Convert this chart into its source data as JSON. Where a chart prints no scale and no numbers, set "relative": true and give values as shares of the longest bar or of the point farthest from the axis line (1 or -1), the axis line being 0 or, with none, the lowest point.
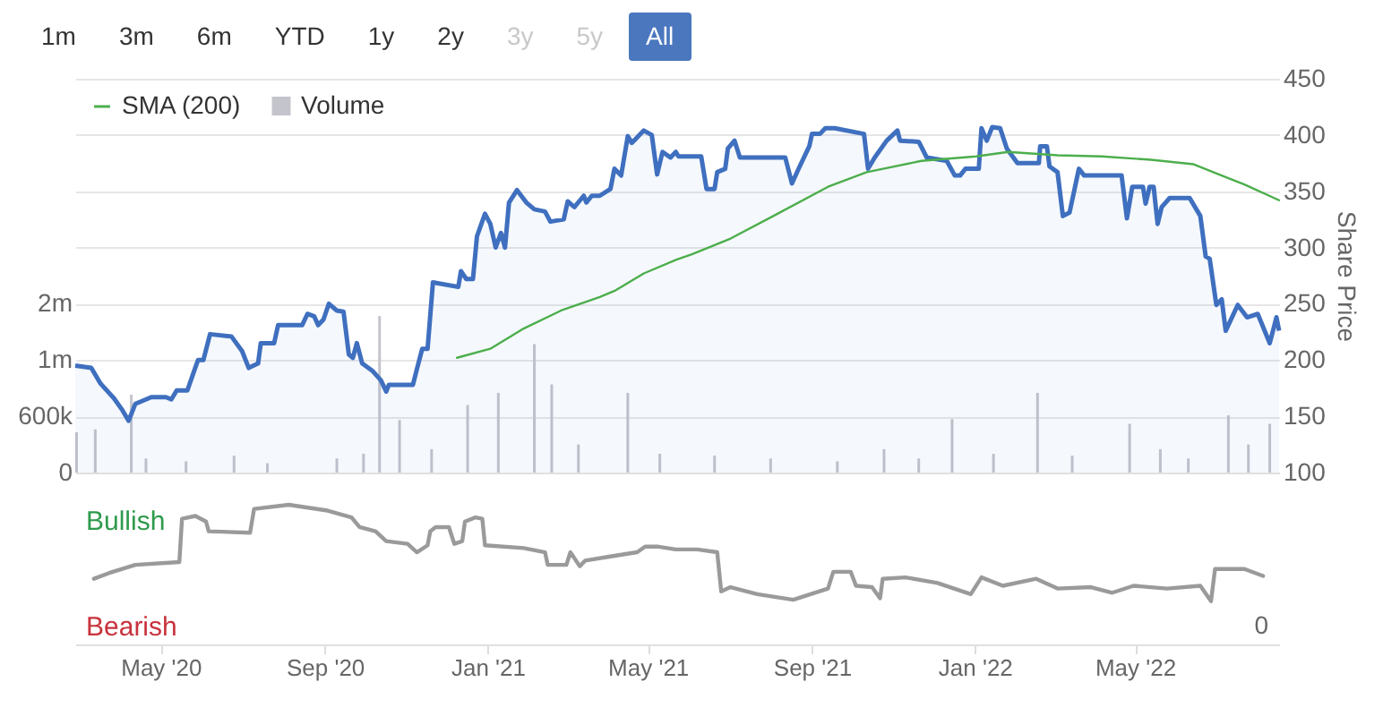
{
  "chart_data": [
    {
      "type": "line",
      "annotations": [
        "1m",
        "3m",
        "6m",
        "YTD",
        "1y",
        "2y",
        "3y",
        "5y",
        "All"
      ],
      "y2label": "Share Price",
      "legend": "top left",
      "grid": "y",
      "tick_labels": "y",
      "xlim": [
        "2020-02-27",
        "2022-08-17"
      ],
      "ylim": [
        0,
        4200000
      ],
      "yticks": [
        0,
        {
          "value": 600000,
          "label": "600k"
        },
        {
          "value": 1200000,
          "label": "1m"
        },
        {
          "value": 1800000,
          "label": "2m"
        }
      ],
      "y2lim": [
        100,
        450
      ],
      "y2ticks": [
        100,
        150,
        200,
        250,
        300,
        350,
        400,
        450
      ],
      "series": [
        {
          "name": "SMA (200)",
          "axis": "y2",
          "color": "#4cae4c",
          "x": [
            "2020-12-09",
            "2021-01-03",
            "2021-01-28",
            "2021-02-25",
            "2021-03-26",
            "2021-04-07",
            "2021-04-28",
            "2021-05-22",
            "2021-06-03",
            "2021-07-02",
            "2021-08-03",
            "2021-09-13",
            "2021-10-12",
            "2021-11-22",
            "2022-01-02",
            "2022-01-26",
            "2022-03-04",
            "2022-04-06",
            "2022-05-13",
            "2022-06-14",
            "2022-07-05",
            "2022-07-22",
            "2022-08-17"
          ],
          "values": [
            202,
            210,
            228,
            244,
            256,
            262,
            277,
            289,
            294,
            308,
            328,
            354,
            367,
            377,
            381,
            385,
            382,
            381,
            378,
            374,
            364,
            356,
            342
          ]
        },
        {
          "name": "Volume",
          "type": "bar",
          "color": "#c4c4cc",
          "x": [
            "2020-02-28",
            "2020-03-13",
            "2020-04-09",
            "2020-04-20",
            "2020-05-20",
            "2020-06-25",
            "2020-07-20",
            "2020-09-10",
            "2020-09-30",
            "2020-10-12",
            "2020-10-27",
            "2020-11-20",
            "2020-12-17",
            "2021-01-09",
            "2021-02-05",
            "2021-02-18",
            "2021-03-10",
            "2021-04-16",
            "2021-05-10",
            "2021-06-20",
            "2021-08-01",
            "2021-09-20",
            "2021-10-25",
            "2021-11-20",
            "2021-12-15",
            "2022-01-15",
            "2022-02-17",
            "2022-03-15",
            "2022-04-27",
            "2022-05-20",
            "2022-06-10",
            "2022-07-10",
            "2022-07-25",
            "2022-08-10"
          ],
          "values": [
            430000,
            460000,
            830000,
            150000,
            120000,
            180000,
            100000,
            150000,
            200000,
            1670000,
            560000,
            250000,
            720000,
            850000,
            1370000,
            940000,
            300000,
            850000,
            200000,
            180000,
            150000,
            120000,
            250000,
            150000,
            570000,
            200000,
            850000,
            180000,
            520000,
            250000,
            150000,
            610000,
            300000,
            520000
          ]
        },
        {
          "type": "area",
          "axis": "y2",
          "color": "#3f6fbf",
          "x": [
            "2020-02-27",
            "2020-03-10",
            "2020-03-17",
            "2020-03-27",
            "2020-04-02",
            "2020-04-07",
            "2020-04-12",
            "2020-04-18",
            "2020-04-24",
            "2020-05-05",
            "2020-05-09",
            "2020-05-13",
            "2020-05-21",
            "2020-05-26",
            "2020-05-29",
            "2020-06-02",
            "2020-06-07",
            "2020-06-23",
            "2020-07-01",
            "2020-07-06",
            "2020-07-13",
            "2020-07-15",
            "2020-07-25",
            "2020-07-28",
            "2020-08-15",
            "2020-08-19",
            "2020-08-24",
            "2020-08-27",
            "2020-08-31",
            "2020-09-04",
            "2020-09-10",
            "2020-09-15",
            "2020-09-19",
            "2020-09-22",
            "2020-09-25",
            "2020-09-29",
            "2020-10-07",
            "2020-10-13",
            "2020-10-17",
            "2020-10-19",
            "2020-11-06",
            "2020-11-09",
            "2020-11-13",
            "2020-11-17",
            "2020-11-21",
            "2020-12-10",
            "2020-12-12",
            "2020-12-16",
            "2020-12-21",
            "2020-12-24",
            "2020-12-30",
            "2021-01-03",
            "2021-01-07",
            "2021-01-11",
            "2021-01-14",
            "2021-01-17",
            "2021-01-23",
            "2021-01-30",
            "2021-02-05",
            "2021-02-13",
            "2021-02-17",
            "2021-02-27",
            "2021-03-02",
            "2021-03-07",
            "2021-03-14",
            "2021-03-16",
            "2021-03-20",
            "2021-03-26",
            "2021-04-03",
            "2021-04-06",
            "2021-04-11",
            "2021-04-16",
            "2021-04-19",
            "2021-04-28",
            "2021-05-04",
            "2021-05-08",
            "2021-05-12",
            "2021-05-18",
            "2021-05-22",
            "2021-05-24",
            "2021-06-10",
            "2021-06-14",
            "2021-06-20",
            "2021-06-22",
            "2021-06-28",
            "2021-06-30",
            "2021-07-05",
            "2021-07-09",
            "2021-08-12",
            "2021-08-17",
            "2021-08-22",
            "2021-08-30",
            "2021-09-01",
            "2021-09-07",
            "2021-09-11",
            "2021-09-18",
            "2021-10-10",
            "2021-10-13",
            "2021-10-18",
            "2021-10-27",
            "2021-11-04",
            "2021-11-06",
            "2021-11-20",
            "2021-11-26",
            "2021-12-11",
            "2021-12-17",
            "2021-12-21",
            "2021-12-25",
            "2022-01-04",
            "2022-01-06",
            "2022-01-10",
            "2022-01-14",
            "2022-01-20",
            "2022-01-25",
            "2022-02-02",
            "2022-02-18",
            "2022-02-19",
            "2022-02-24",
            "2022-02-26",
            "2022-03-04",
            "2022-03-08",
            "2022-03-13",
            "2022-03-20",
            "2022-03-24",
            "2022-03-28",
            "2022-04-21",
            "2022-04-25",
            "2022-04-29",
            "2022-05-07",
            "2022-05-09",
            "2022-05-12",
            "2022-05-15",
            "2022-05-18",
            "2022-05-21",
            "2022-05-27",
            "2022-06-11",
            "2022-06-19",
            "2022-06-23",
            "2022-06-26",
            "2022-07-01",
            "2022-07-05",
            "2022-07-08",
            "2022-07-17",
            "2022-07-24",
            "2022-08-01",
            "2022-08-10",
            "2022-08-15",
            "2022-08-17"
          ],
          "values": [
            195,
            193,
            179,
            166,
            156,
            146,
            161,
            164,
            167,
            167,
            165,
            173,
            173,
            190,
            200,
            200,
            223,
            221,
            208,
            193,
            197,
            215,
            215,
            231,
            231,
            241,
            239,
            231,
            236,
            250,
            244,
            243,
            205,
            202,
            215,
            197,
            190,
            182,
            172,
            178,
            178,
            192,
            210,
            210,
            269,
            265,
            279,
            272,
            272,
            310,
            330,
            321,
            300,
            313,
            300,
            340,
            351,
            340,
            334,
            332,
            323,
            325,
            341,
            336,
            346,
            340,
            346,
            346,
            352,
            370,
            364,
            399,
            393,
            404,
            400,
            365,
            385,
            380,
            385,
            381,
            381,
            352,
            352,
            367,
            370,
            388,
            395,
            380,
            380,
            357,
            370,
            390,
            401,
            401,
            406,
            406,
            401,
            370,
            380,
            395,
            404,
            395,
            394,
            380,
            377,
            364,
            364,
            370,
            370,
            406,
            395,
            407,
            406,
            388,
            375,
            375,
            390,
            390,
            372,
            367,
            328,
            331,
            370,
            364,
            364,
            364,
            326,
            354,
            354,
            339,
            354,
            354,
            321,
            336,
            344,
            344,
            328,
            292,
            290,
            249,
            254,
            226,
            249,
            238,
            241,
            215,
            238,
            226
          ]
        }
      ]
    },
    {
      "type": "line",
      "relative": true,
      "annotations": [
        "Bullish",
        "Bearish",
        "0"
      ],
      "xlim": [
        "2020-02-27",
        "2022-08-17"
      ],
      "xticks": [
        {
          "value": "2020-05-01",
          "label": "May '20"
        },
        {
          "value": "2020-09-01",
          "label": "Sep '20"
        },
        {
          "value": "2021-01-01",
          "label": "Jan '21"
        },
        {
          "value": "2021-05-01",
          "label": "May '21"
        },
        {
          "value": "2021-09-01",
          "label": "Sep '21"
        },
        {
          "value": "2022-01-01",
          "label": "Jan '22"
        },
        {
          "value": "2022-05-01",
          "label": "May '22"
        }
      ],
      "series": [
        {
          "color": "#9a9a9a",
          "x": [
            "2020-03-12",
            "2020-03-23",
            "2020-04-12",
            "2020-05-15",
            "2020-05-17",
            "2020-05-27",
            "2020-06-04",
            "2020-06-06",
            "2020-07-07",
            "2020-07-10",
            "2020-08-05",
            "2020-09-02",
            "2020-09-21",
            "2020-09-27",
            "2020-10-09",
            "2020-10-17",
            "2020-11-02",
            "2020-11-09",
            "2020-11-17",
            "2020-11-19",
            "2020-11-23",
            "2020-12-03",
            "2020-12-07",
            "2020-12-13",
            "2020-12-15",
            "2020-12-23",
            "2020-12-28",
            "2020-12-30",
            "2021-01-28",
            "2021-02-13",
            "2021-02-15",
            "2021-03-01",
            "2021-03-04",
            "2021-03-11",
            "2021-03-15",
            "2021-04-03",
            "2021-04-23",
            "2021-04-29",
            "2021-05-09",
            "2021-05-22",
            "2021-06-07",
            "2021-06-22",
            "2021-06-25",
            "2021-07-02",
            "2021-07-22",
            "2021-08-18",
            "2021-09-13",
            "2021-09-17",
            "2021-09-30",
            "2021-10-04",
            "2021-10-16",
            "2021-10-22",
            "2021-10-24",
            "2021-11-10",
            "2021-12-04",
            "2021-12-29",
            "2022-01-06",
            "2022-01-22",
            "2022-02-16",
            "2022-03-04",
            "2022-03-29",
            "2022-04-14",
            "2022-04-30",
            "2022-05-25",
            "2022-06-19",
            "2022-06-27",
            "2022-06-30",
            "2022-07-22",
            "2022-08-05"
          ],
          "values": [
            0.47,
            0.51,
            0.57,
            0.59,
            0.9,
            0.92,
            0.88,
            0.81,
            0.8,
            0.97,
            1,
            0.96,
            0.91,
            0.84,
            0.81,
            0.74,
            0.72,
            0.66,
            0.71,
            0.81,
            0.84,
            0.84,
            0.72,
            0.74,
            0.88,
            0.91,
            0.9,
            0.71,
            0.69,
            0.66,
            0.57,
            0.57,
            0.66,
            0.56,
            0.6,
            0.63,
            0.66,
            0.7,
            0.7,
            0.68,
            0.68,
            0.66,
            0.38,
            0.41,
            0.36,
            0.32,
            0.4,
            0.52,
            0.52,
            0.42,
            0.41,
            0.33,
            0.47,
            0.48,
            0.44,
            0.36,
            0.48,
            0.42,
            0.47,
            0.4,
            0.41,
            0.37,
            0.42,
            0.4,
            0.42,
            0.31,
            0.54,
            0.54,
            0.49
          ]
        }
      ]
    }
  ]
}
